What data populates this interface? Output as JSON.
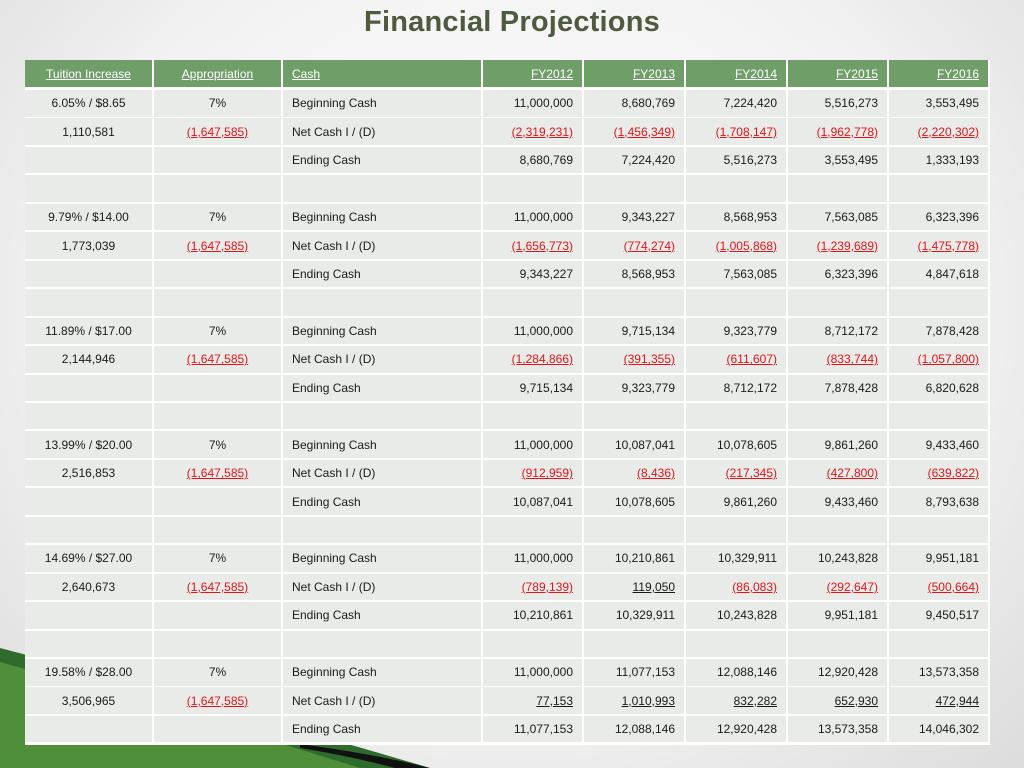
{
  "header": {
    "title": "Financial Projections"
  },
  "table": {
    "columns": [
      "Tuition Increase",
      "Appropriation",
      "Cash",
      "FY2012",
      "FY2013",
      "FY2014",
      "FY2015",
      "FY2016"
    ],
    "groups": [
      {
        "tuition": "6.05% / $8.65",
        "tuition_amount": "1,110,581",
        "appropriation": "7%",
        "appropriation_amount": "(1,647,585)",
        "rows": [
          {
            "label": "Beginning Cash",
            "values": [
              "11,000,000",
              "8,680,769",
              "7,224,420",
              "5,516,273",
              "3,553,495"
            ]
          },
          {
            "label": "Net Cash I / (D)",
            "values": [
              "(2,319,231)",
              "(1,456,349)",
              "(1,708,147)",
              "(1,962,778)",
              "(2,220,302)"
            ]
          },
          {
            "label": "Ending Cash",
            "values": [
              "8,680,769",
              "7,224,420",
              "5,516,273",
              "3,553,495",
              "1,333,193"
            ]
          }
        ]
      },
      {
        "tuition": "9.79% / $14.00",
        "tuition_amount": "1,773,039",
        "appropriation": "7%",
        "appropriation_amount": "(1,647,585)",
        "rows": [
          {
            "label": "Beginning Cash",
            "values": [
              "11,000,000",
              "9,343,227",
              "8,568,953",
              "7,563,085",
              "6,323,396"
            ]
          },
          {
            "label": "Net Cash I / (D)",
            "values": [
              "(1,656,773)",
              "(774,274)",
              "(1,005,868)",
              "(1,239,689)",
              "(1,475,778)"
            ]
          },
          {
            "label": "Ending Cash",
            "values": [
              "9,343,227",
              "8,568,953",
              "7,563,085",
              "6,323,396",
              "4,847,618"
            ]
          }
        ]
      },
      {
        "tuition": "11.89% / $17.00",
        "tuition_amount": "2,144,946",
        "appropriation": "7%",
        "appropriation_amount": "(1,647,585)",
        "rows": [
          {
            "label": "Beginning Cash",
            "values": [
              "11,000,000",
              "9,715,134",
              "9,323,779",
              "8,712,172",
              "7,878,428"
            ]
          },
          {
            "label": "Net Cash I / (D)",
            "values": [
              "(1,284,866)",
              "(391,355)",
              "(611,607)",
              "(833,744)",
              "(1,057,800)"
            ]
          },
          {
            "label": "Ending Cash",
            "values": [
              "9,715,134",
              "9,323,779",
              "8,712,172",
              "7,878,428",
              "6,820,628"
            ]
          }
        ]
      },
      {
        "tuition": "13.99% / $20.00",
        "tuition_amount": "2,516,853",
        "appropriation": "7%",
        "appropriation_amount": "(1,647,585)",
        "rows": [
          {
            "label": "Beginning Cash",
            "values": [
              "11,000,000",
              "10,087,041",
              "10,078,605",
              "9,861,260",
              "9,433,460"
            ]
          },
          {
            "label": "Net Cash I / (D)",
            "values": [
              "(912,959)",
              "(8,436)",
              "(217,345)",
              "(427,800)",
              "(639,822)"
            ]
          },
          {
            "label": "Ending Cash",
            "values": [
              "10,087,041",
              "10,078,605",
              "9,861,260",
              "9,433,460",
              "8,793,638"
            ]
          }
        ]
      },
      {
        "tuition": "14.69% / $27.00",
        "tuition_amount": "2,640,673",
        "appropriation": "7%",
        "appropriation_amount": "(1,647,585)",
        "rows": [
          {
            "label": "Beginning Cash",
            "values": [
              "11,000,000",
              "10,210,861",
              "10,329,911",
              "10,243,828",
              "9,951,181"
            ]
          },
          {
            "label": "Net Cash I / (D)",
            "values": [
              "(789,139)",
              "119,050",
              "(86,083)",
              "(292,647)",
              "(500,664)"
            ]
          },
          {
            "label": "Ending Cash",
            "values": [
              "10,210,861",
              "10,329,911",
              "10,243,828",
              "9,951,181",
              "9,450,517"
            ]
          }
        ]
      },
      {
        "tuition": "19.58% / $28.00",
        "tuition_amount": "3,506,965",
        "appropriation": "7%",
        "appropriation_amount": "(1,647,585)",
        "rows": [
          {
            "label": "Beginning Cash",
            "values": [
              "11,000,000",
              "11,077,153",
              "12,088,146",
              "12,920,428",
              "13,573,358"
            ]
          },
          {
            "label": "Net Cash I / (D)",
            "values": [
              "77,153",
              "1,010,993",
              "832,282",
              "652,930",
              "472,944"
            ]
          },
          {
            "label": "Ending Cash",
            "values": [
              "11,077,153",
              "12,088,146",
              "12,920,428",
              "13,573,358",
              "14,046,302"
            ]
          }
        ]
      }
    ]
  }
}
